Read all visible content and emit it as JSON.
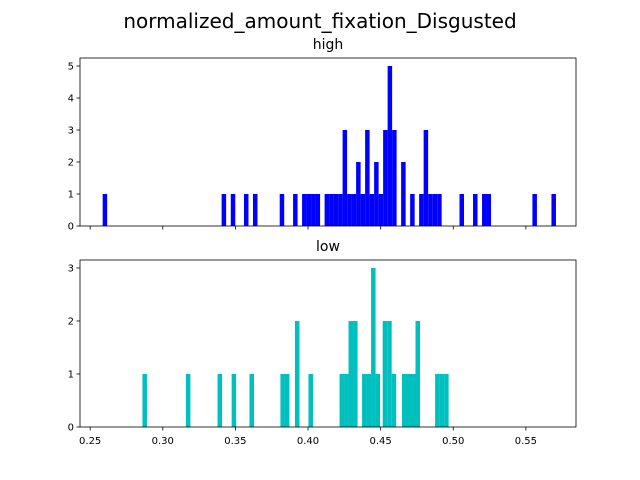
{
  "chart_data": {
    "type": "bar",
    "title": "normalized_amount_fixation_Disgusted",
    "subplots": [
      {
        "name": "high",
        "title": "high",
        "color": "#0000ff",
        "xlim": [
          0.243,
          0.5845
        ],
        "ylim": [
          0,
          5.25
        ],
        "bin_width": 0.0031,
        "yticks": [
          0,
          1,
          2,
          3,
          4,
          5
        ],
        "xticks": [
          0.25,
          0.3,
          0.35,
          0.4,
          0.45,
          0.5,
          0.55
        ],
        "show_xtick_labels": false,
        "bars": [
          {
            "x": 0.2586,
            "y": 1
          },
          {
            "x": 0.3405,
            "y": 1
          },
          {
            "x": 0.3468,
            "y": 1
          },
          {
            "x": 0.3559,
            "y": 1
          },
          {
            "x": 0.3621,
            "y": 1
          },
          {
            "x": 0.3805,
            "y": 1
          },
          {
            "x": 0.3897,
            "y": 1
          },
          {
            "x": 0.3959,
            "y": 1
          },
          {
            "x": 0.399,
            "y": 1
          },
          {
            "x": 0.4021,
            "y": 1
          },
          {
            "x": 0.4052,
            "y": 1
          },
          {
            "x": 0.4114,
            "y": 1
          },
          {
            "x": 0.4145,
            "y": 1
          },
          {
            "x": 0.4176,
            "y": 1
          },
          {
            "x": 0.4207,
            "y": 1
          },
          {
            "x": 0.4238,
            "y": 3
          },
          {
            "x": 0.4269,
            "y": 1
          },
          {
            "x": 0.43,
            "y": 1
          },
          {
            "x": 0.4331,
            "y": 2
          },
          {
            "x": 0.4362,
            "y": 1
          },
          {
            "x": 0.4393,
            "y": 3
          },
          {
            "x": 0.4424,
            "y": 1
          },
          {
            "x": 0.4455,
            "y": 2
          },
          {
            "x": 0.4486,
            "y": 1
          },
          {
            "x": 0.4517,
            "y": 3
          },
          {
            "x": 0.4548,
            "y": 5
          },
          {
            "x": 0.4579,
            "y": 3
          },
          {
            "x": 0.4641,
            "y": 2
          },
          {
            "x": 0.4703,
            "y": 1
          },
          {
            "x": 0.4765,
            "y": 1
          },
          {
            "x": 0.4796,
            "y": 3
          },
          {
            "x": 0.4827,
            "y": 1
          },
          {
            "x": 0.4858,
            "y": 1
          },
          {
            "x": 0.4889,
            "y": 1
          },
          {
            "x": 0.5043,
            "y": 1
          },
          {
            "x": 0.5136,
            "y": 1
          },
          {
            "x": 0.5198,
            "y": 1
          },
          {
            "x": 0.5229,
            "y": 1
          },
          {
            "x": 0.5545,
            "y": 1
          },
          {
            "x": 0.5676,
            "y": 1
          }
        ]
      },
      {
        "name": "low",
        "title": "low",
        "color": "#00bfbf",
        "xlim": [
          0.243,
          0.5845
        ],
        "ylim": [
          0,
          3.15
        ],
        "bin_width": 0.0031,
        "yticks": [
          0,
          1,
          2,
          3
        ],
        "xticks": [
          0.25,
          0.3,
          0.35,
          0.4,
          0.45,
          0.5,
          0.55
        ],
        "xtick_labels": [
          "0.25",
          "0.30",
          "0.35",
          "0.40",
          "0.45",
          "0.50",
          "0.55"
        ],
        "show_xtick_labels": true,
        "bars": [
          {
            "x": 0.286,
            "y": 1
          },
          {
            "x": 0.3159,
            "y": 1
          },
          {
            "x": 0.3377,
            "y": 1
          },
          {
            "x": 0.3474,
            "y": 1
          },
          {
            "x": 0.3597,
            "y": 1
          },
          {
            "x": 0.381,
            "y": 1
          },
          {
            "x": 0.3841,
            "y": 1
          },
          {
            "x": 0.391,
            "y": 2
          },
          {
            "x": 0.4003,
            "y": 1
          },
          {
            "x": 0.4217,
            "y": 1
          },
          {
            "x": 0.4248,
            "y": 1
          },
          {
            "x": 0.4279,
            "y": 2
          },
          {
            "x": 0.431,
            "y": 2
          },
          {
            "x": 0.4372,
            "y": 1
          },
          {
            "x": 0.4403,
            "y": 1
          },
          {
            "x": 0.4434,
            "y": 3
          },
          {
            "x": 0.4465,
            "y": 1
          },
          {
            "x": 0.4514,
            "y": 2
          },
          {
            "x": 0.4545,
            "y": 2
          },
          {
            "x": 0.4576,
            "y": 1
          },
          {
            "x": 0.4647,
            "y": 1
          },
          {
            "x": 0.4678,
            "y": 1
          },
          {
            "x": 0.4709,
            "y": 1
          },
          {
            "x": 0.474,
            "y": 2
          },
          {
            "x": 0.4875,
            "y": 1
          },
          {
            "x": 0.4906,
            "y": 1
          },
          {
            "x": 0.4937,
            "y": 1
          }
        ]
      }
    ]
  }
}
